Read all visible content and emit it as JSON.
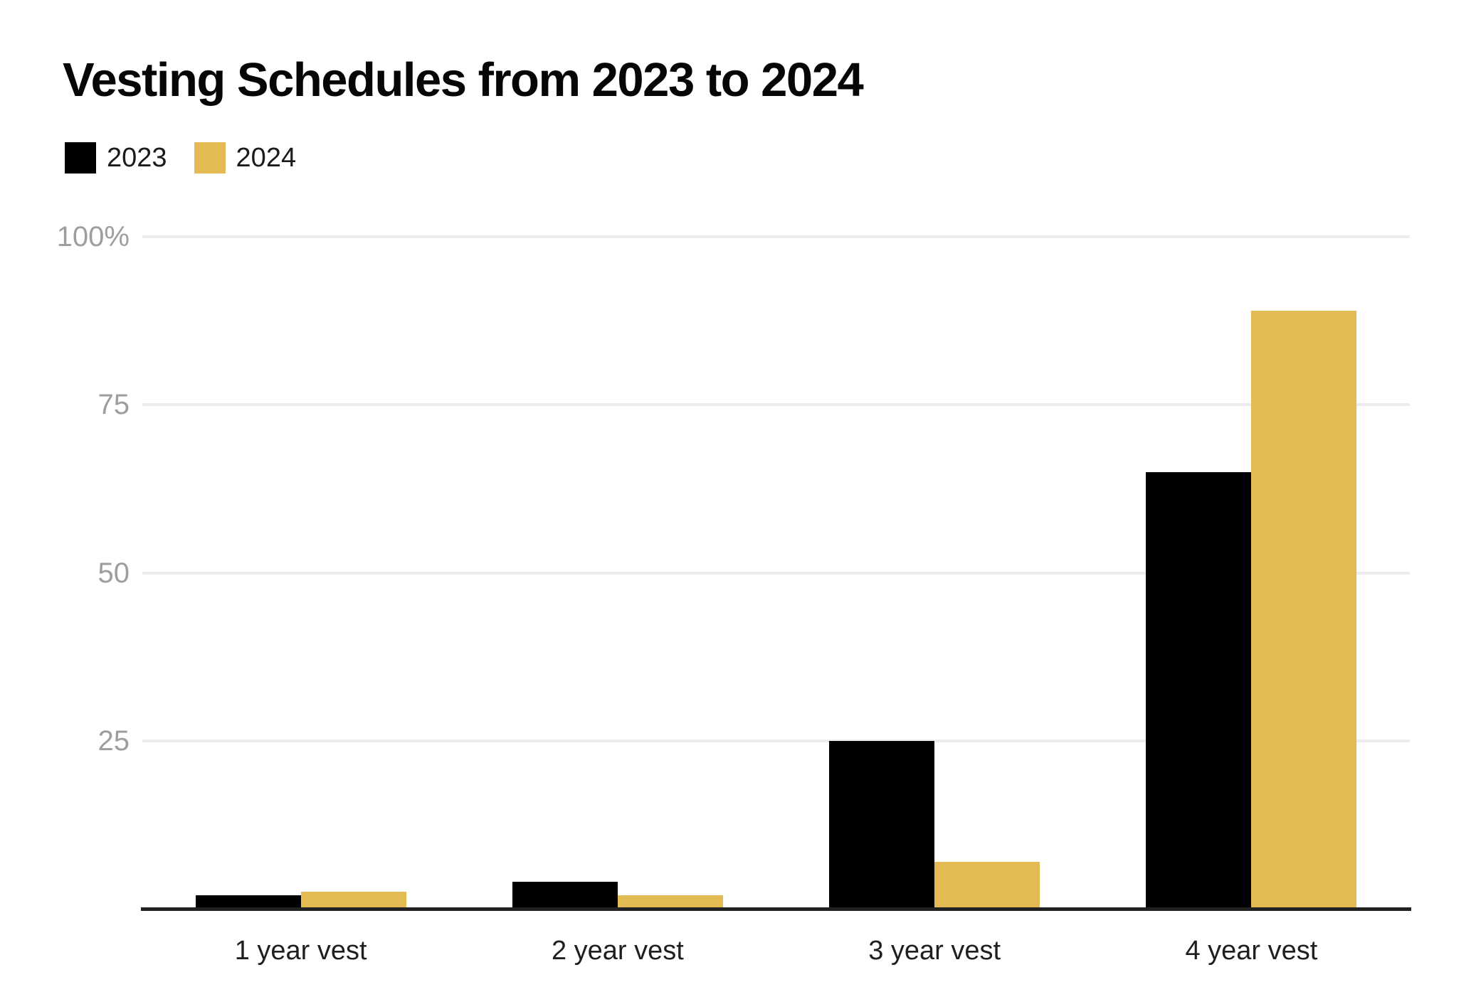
{
  "title": "Vesting Schedules from 2023 to 2024",
  "legend": {
    "items": [
      {
        "label": "2023",
        "color": "#000000"
      },
      {
        "label": "2024",
        "color": "#E2BC52"
      }
    ]
  },
  "chart_data": {
    "type": "bar",
    "title": "Vesting Schedules from 2023 to 2024",
    "categories": [
      "1 year vest",
      "2 year vest",
      "3 year vest",
      "4 year vest"
    ],
    "series": [
      {
        "name": "2023",
        "color": "#000000",
        "values": [
          2,
          4,
          25,
          65
        ]
      },
      {
        "name": "2024",
        "color": "#E2BC52",
        "values": [
          2.5,
          2,
          7,
          89
        ]
      }
    ],
    "ylim": [
      0,
      100
    ],
    "y_ticks": [
      {
        "value": 100,
        "label": "100%"
      },
      {
        "value": 75,
        "label": "75"
      },
      {
        "value": 50,
        "label": "50"
      },
      {
        "value": 25,
        "label": "25"
      }
    ],
    "xlabel": "",
    "ylabel": "",
    "grid": true,
    "bar_orientation": "vertical",
    "legend_position": "top-left"
  },
  "style": {
    "background": "#FFFFFF",
    "bar_black": "#000000",
    "accent_gold": "#E2BC52",
    "grid_color": "#ECECEC",
    "axis_color": "#212121",
    "y_tick_color": "#9E9E9E",
    "x_label_color": "#1F1F1F",
    "title_color": "#060606"
  }
}
